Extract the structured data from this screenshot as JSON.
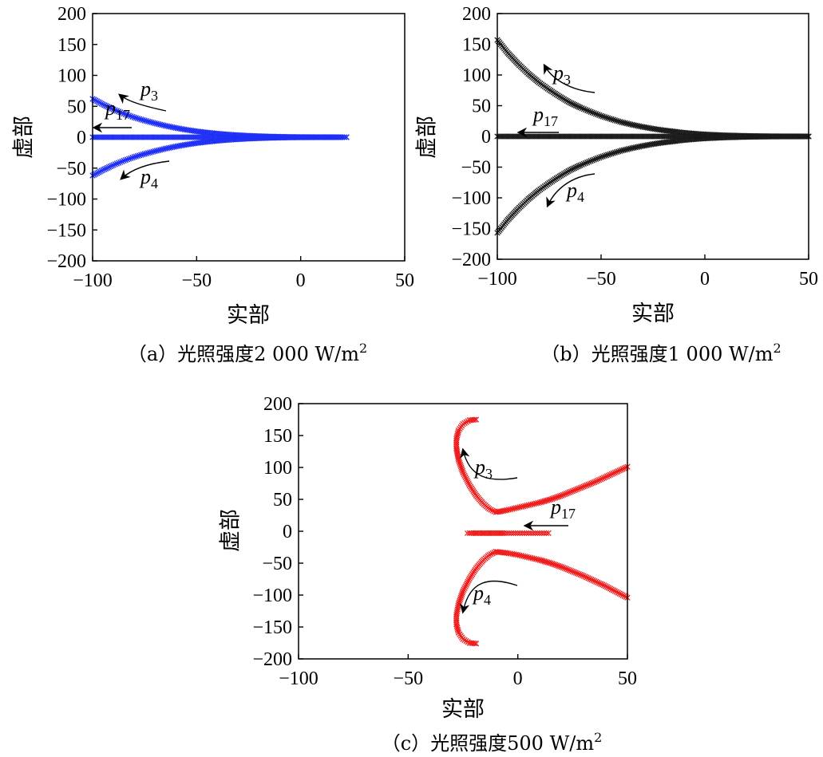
{
  "figure": {
    "axis_x_label": "实部",
    "axis_y_label": "虚部"
  },
  "chart_data": [
    {
      "id": "a",
      "type": "scatter",
      "caption": "（a）光照强度2 000 W/m",
      "caption_sup": "2",
      "color": "#1f2ff5",
      "xlabel": "实部",
      "ylabel": "虚部",
      "xlim": [
        -100,
        50
      ],
      "ylim": [
        -200,
        200
      ],
      "xticks": [
        "−100",
        "−50",
        "0",
        "50"
      ],
      "yticks": [
        "200",
        "150",
        "100",
        "50",
        "0",
        "−50",
        "−100",
        "−150",
        "−200"
      ],
      "grid": false,
      "series": [
        {
          "name": "p3",
          "x": [
            -100,
            -95,
            -90,
            -85,
            -80,
            -75,
            -70,
            -65,
            -60,
            -55,
            -50,
            -45,
            -40,
            -35,
            -30,
            -25,
            -20,
            -15,
            -10,
            -5,
            0,
            5,
            10,
            15,
            20,
            22
          ],
          "y": [
            62,
            53,
            45,
            38,
            32,
            27,
            22.5,
            18.5,
            15,
            12,
            9.5,
            7.5,
            5.8,
            4.4,
            3.3,
            2.4,
            1.7,
            1.2,
            0.8,
            0.5,
            0.3,
            0.2,
            0.1,
            0.05,
            0,
            0
          ]
        },
        {
          "name": "p4",
          "x": [
            -100,
            -95,
            -90,
            -85,
            -80,
            -75,
            -70,
            -65,
            -60,
            -55,
            -50,
            -45,
            -40,
            -35,
            -30,
            -25,
            -20,
            -15,
            -10,
            -5,
            0,
            5,
            10,
            15,
            20,
            22
          ],
          "y": [
            -62,
            -53,
            -45,
            -38,
            -32,
            -27,
            -22.5,
            -18.5,
            -15,
            -12,
            -9.5,
            -7.5,
            -5.8,
            -4.4,
            -3.3,
            -2.4,
            -1.7,
            -1.2,
            -0.8,
            -0.5,
            -0.3,
            -0.2,
            -0.1,
            -0.05,
            0,
            0
          ]
        },
        {
          "name": "p17",
          "x": [
            -100,
            -90,
            -80,
            -70,
            -60,
            -50,
            -40,
            -30,
            -20,
            -10,
            0,
            10,
            20,
            22
          ],
          "y": [
            0,
            0,
            0,
            0,
            0,
            0,
            0,
            0,
            0,
            0,
            0,
            0,
            0,
            0
          ]
        }
      ],
      "annotations": [
        {
          "label": "p",
          "sub": "3"
        },
        {
          "label": "p",
          "sub": "17"
        },
        {
          "label": "p",
          "sub": "4"
        }
      ]
    },
    {
      "id": "b",
      "type": "scatter",
      "caption": "（b）光照强度1 000 W/m",
      "caption_sup": "2",
      "color": "#1a1a1a",
      "xlabel": "实部",
      "ylabel": "虚部",
      "xlim": [
        -100,
        50
      ],
      "ylim": [
        -200,
        200
      ],
      "xticks": [
        "−100",
        "−50",
        "0",
        "50"
      ],
      "yticks": [
        "200",
        "150",
        "100",
        "50",
        "0",
        "−50",
        "−100",
        "−150",
        "−200"
      ],
      "grid": false,
      "series": [
        {
          "name": "p3",
          "x": [
            -100,
            -95,
            -90,
            -85,
            -80,
            -75,
            -70,
            -65,
            -60,
            -55,
            -50,
            -45,
            -40,
            -35,
            -30,
            -25,
            -20,
            -15,
            -10,
            -5,
            0,
            10,
            20,
            30,
            40,
            50
          ],
          "y": [
            157,
            136,
            118,
            102,
            88,
            76,
            65,
            55,
            47,
            40,
            33.5,
            28,
            23,
            19,
            15.5,
            12.5,
            10,
            8,
            6,
            4.5,
            3.3,
            1.8,
            0.9,
            0.4,
            0.1,
            0
          ]
        },
        {
          "name": "p4",
          "x": [
            -100,
            -95,
            -90,
            -85,
            -80,
            -75,
            -70,
            -65,
            -60,
            -55,
            -50,
            -45,
            -40,
            -35,
            -30,
            -25,
            -20,
            -15,
            -10,
            -5,
            0,
            10,
            20,
            30,
            40,
            50
          ],
          "y": [
            -157,
            -136,
            -118,
            -102,
            -88,
            -76,
            -65,
            -55,
            -47,
            -40,
            -33.5,
            -28,
            -23,
            -19,
            -15.5,
            -12.5,
            -10,
            -8,
            -6,
            -4.5,
            -3.3,
            -1.8,
            -0.9,
            -0.4,
            -0.1,
            0
          ]
        },
        {
          "name": "p17",
          "x": [
            -100,
            -90,
            -80,
            -70,
            -60,
            -50,
            -40,
            -30,
            -20,
            -10,
            0,
            10,
            20,
            30,
            40,
            50
          ],
          "y": [
            0,
            0,
            0,
            0,
            0,
            0,
            0,
            0,
            0,
            0,
            0,
            0,
            0,
            0,
            0,
            0
          ]
        }
      ],
      "annotations": [
        {
          "label": "p",
          "sub": "3"
        },
        {
          "label": "p",
          "sub": "17"
        },
        {
          "label": "p",
          "sub": "4"
        }
      ]
    },
    {
      "id": "c",
      "type": "scatter",
      "caption": "（c）光照强度500 W/m",
      "caption_sup": "2",
      "color": "#ee1c1c",
      "xlabel": "实部",
      "ylabel": "虚部",
      "xlim": [
        -100,
        50
      ],
      "ylim": [
        -200,
        200
      ],
      "xticks": [
        "−100",
        "−50",
        "0",
        "50"
      ],
      "yticks": [
        "200",
        "150",
        "100",
        "50",
        "0",
        "−50",
        "−100",
        "−150",
        "−200"
      ],
      "grid": false,
      "series": [
        {
          "name": "p3",
          "x": [
            50,
            45,
            40,
            35,
            30,
            25,
            20,
            15,
            10,
            5,
            0,
            -5,
            -8,
            -10,
            -13,
            -16,
            -19,
            -22,
            -25,
            -27,
            -28,
            -28,
            -27,
            -25,
            -22,
            -19
          ],
          "y": [
            101,
            93,
            85,
            77,
            70,
            63,
            56,
            50,
            45,
            41,
            37,
            33,
            31,
            30,
            35,
            44,
            56,
            72,
            92,
            112,
            130,
            145,
            158,
            168,
            174,
            175
          ]
        },
        {
          "name": "p4",
          "x": [
            50,
            45,
            40,
            35,
            30,
            25,
            20,
            15,
            10,
            5,
            0,
            -5,
            -8,
            -10,
            -13,
            -16,
            -19,
            -22,
            -25,
            -27,
            -28,
            -28,
            -27,
            -25,
            -22,
            -19
          ],
          "y": [
            -104,
            -95,
            -86,
            -78,
            -70,
            -63,
            -56,
            -50,
            -45,
            -41,
            -37,
            -34,
            -33,
            -32,
            -37,
            -46,
            -58,
            -74,
            -94,
            -114,
            -131,
            -146,
            -159,
            -169,
            -175,
            -176
          ]
        },
        {
          "name": "p17",
          "x": [
            14,
            12,
            10,
            8,
            6,
            4,
            2,
            0,
            -2,
            -4,
            -6,
            -9,
            -13,
            -17,
            -22
          ],
          "y": [
            -3,
            -3,
            -3,
            -3,
            -3,
            -3,
            -3,
            -3,
            -3,
            -3,
            -3,
            -3,
            -3,
            -3,
            -3
          ]
        }
      ],
      "annotations": [
        {
          "label": "p",
          "sub": "3"
        },
        {
          "label": "p",
          "sub": "17"
        },
        {
          "label": "p",
          "sub": "4"
        }
      ]
    }
  ]
}
